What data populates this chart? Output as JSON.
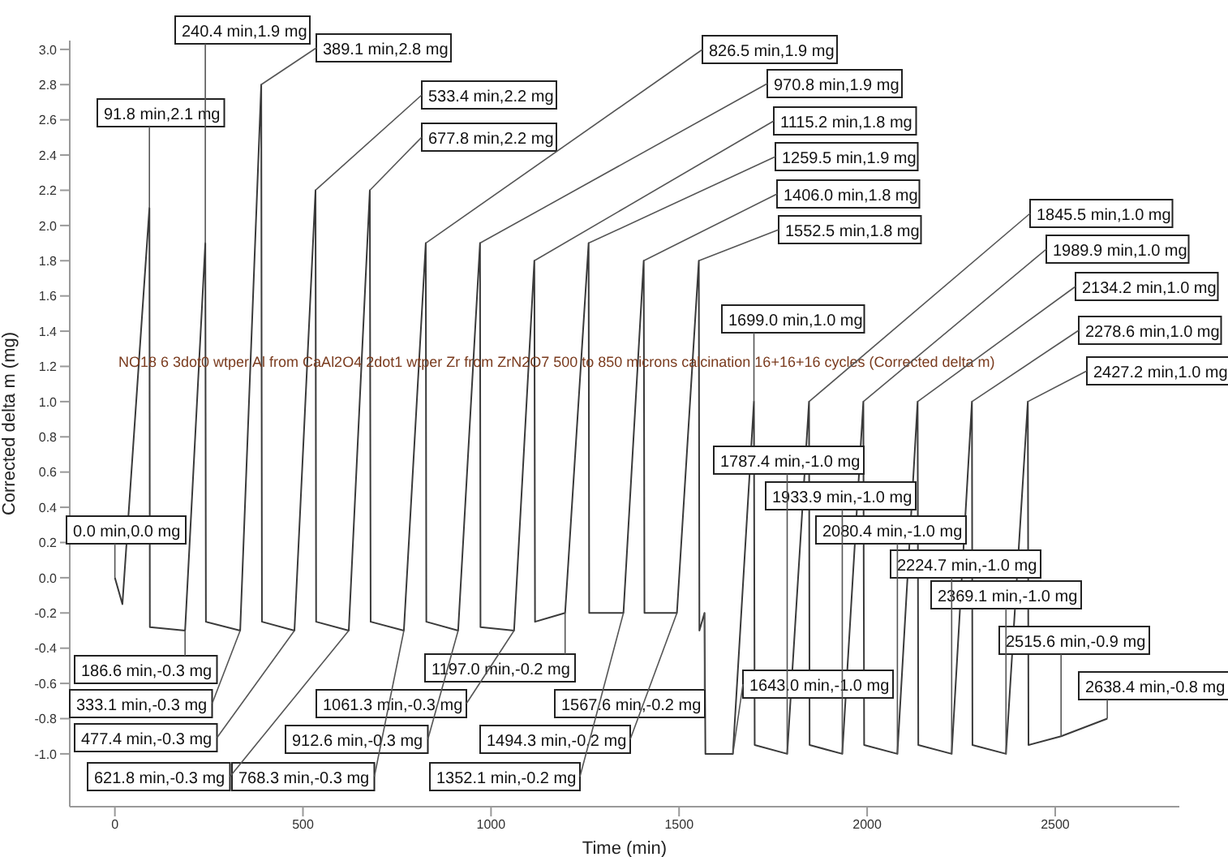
{
  "chart_data": {
    "type": "line",
    "xlabel": "Time (min)",
    "ylabel": "Corrected delta m (mg)",
    "xlim": [
      -120,
      2830
    ],
    "xticks": [
      0,
      500,
      1000,
      1500,
      2000,
      2500
    ],
    "ylim": [
      -1.3,
      3.05
    ],
    "yticks": [
      {
        "value": -1,
        "label": "-1.0"
      },
      -0.8,
      -0.6,
      -0.4,
      -0.2,
      {
        "value": 0,
        "label": "0.0"
      },
      0.2,
      0.4,
      0.6,
      0.8,
      {
        "value": 1,
        "label": "1.0"
      },
      1.2,
      1.4,
      1.6,
      1.8,
      {
        "value": 2,
        "label": "2.0"
      },
      2.2,
      2.4,
      2.6,
      2.8,
      {
        "value": 3,
        "label": "3.0"
      }
    ],
    "grid": false,
    "legend": false,
    "marker": "none",
    "line_style": "solid",
    "series": [
      {
        "name": "NO18 6 3dot0 wtper Al from CaAl2O4 2dot1 wtper Zr from ZrN2O7 500 to 850 microns calcination 16+16+16 cycles (Corrected delta m)",
        "color": "#3a3a3a",
        "x": [
          0,
          20,
          91.8,
          93,
          186.6,
          240.4,
          242,
          333.1,
          389.1,
          391,
          477.4,
          533.4,
          535,
          621.8,
          677.8,
          680,
          768.3,
          826.5,
          828,
          912.6,
          970.8,
          972,
          1061.3,
          1115.2,
          1117,
          1197.0,
          1259.5,
          1261,
          1352.1,
          1406.0,
          1408,
          1494.3,
          1552.5,
          1554,
          1567.6,
          1570,
          1643.0,
          1699.0,
          1701,
          1787.4,
          1845.5,
          1847,
          1933.9,
          1989.9,
          1992,
          2080.4,
          2134.2,
          2136,
          2224.7,
          2278.6,
          2280,
          2369.1,
          2427.2,
          2429,
          2515.6,
          2638.4
        ],
        "values": [
          0,
          -0.15,
          2.1,
          -0.28,
          -0.3,
          1.9,
          -0.25,
          -0.3,
          2.8,
          -0.25,
          -0.3,
          2.2,
          -0.25,
          -0.3,
          2.2,
          -0.25,
          -0.3,
          1.9,
          -0.25,
          -0.3,
          1.9,
          -0.28,
          -0.3,
          1.8,
          -0.25,
          -0.2,
          1.9,
          -0.2,
          -0.2,
          1.8,
          -0.2,
          -0.2,
          1.8,
          -0.3,
          -0.2,
          -1.0,
          -1.0,
          1.0,
          -0.95,
          -1.0,
          1.0,
          -0.95,
          -1.0,
          1.0,
          -0.95,
          -1.0,
          1.0,
          -0.95,
          -1.0,
          1.0,
          -0.95,
          -1.0,
          1.0,
          -0.95,
          -0.9,
          -0.8
        ]
      }
    ],
    "annotations": [
      {
        "text": "0.0 min,0.0 mg",
        "x": 0,
        "y": 0
      },
      {
        "text": "91.8 min,2.1 mg",
        "x": 91.8,
        "y": 2.1
      },
      {
        "text": "186.6 min,-0.3 mg",
        "x": 186.6,
        "y": -0.3
      },
      {
        "text": "240.4 min,1.9 mg",
        "x": 240.4,
        "y": 1.9
      },
      {
        "text": "333.1 min,-0.3 mg",
        "x": 333.1,
        "y": -0.3
      },
      {
        "text": "389.1 min,2.8 mg",
        "x": 389.1,
        "y": 2.8
      },
      {
        "text": "477.4 min,-0.3 mg",
        "x": 477.4,
        "y": -0.3
      },
      {
        "text": "533.4 min,2.2 mg",
        "x": 533.4,
        "y": 2.2
      },
      {
        "text": "621.8 min,-0.3 mg",
        "x": 621.8,
        "y": -0.3
      },
      {
        "text": "677.8 min,2.2 mg",
        "x": 677.8,
        "y": 2.2
      },
      {
        "text": "768.3 min,-0.3 mg",
        "x": 768.3,
        "y": -0.3
      },
      {
        "text": "826.5 min,1.9 mg",
        "x": 826.5,
        "y": 1.9
      },
      {
        "text": "912.6 min,-0.3 mg",
        "x": 912.6,
        "y": -0.3
      },
      {
        "text": "970.8 min,1.9 mg",
        "x": 970.8,
        "y": 1.9
      },
      {
        "text": "1061.3 min,-0.3 mg",
        "x": 1061.3,
        "y": -0.3
      },
      {
        "text": "1115.2 min,1.8 mg",
        "x": 1115.2,
        "y": 1.8
      },
      {
        "text": "1197.0 min,-0.2 mg",
        "x": 1197.0,
        "y": -0.2
      },
      {
        "text": "1259.5 min,1.9 mg",
        "x": 1259.5,
        "y": 1.9
      },
      {
        "text": "1352.1 min,-0.2 mg",
        "x": 1352.1,
        "y": -0.2
      },
      {
        "text": "1406.0 min,1.8 mg",
        "x": 1406.0,
        "y": 1.8
      },
      {
        "text": "1494.3 min,-0.2 mg",
        "x": 1494.3,
        "y": -0.2
      },
      {
        "text": "1552.5 min,1.8 mg",
        "x": 1552.5,
        "y": 1.8
      },
      {
        "text": "1567.6 min,-0.2 mg",
        "x": 1567.6,
        "y": -0.2
      },
      {
        "text": "1643.0 min,-1.0 mg",
        "x": 1643.0,
        "y": -1.0
      },
      {
        "text": "1699.0 min,1.0 mg",
        "x": 1699.0,
        "y": 1.0
      },
      {
        "text": "1787.4 min,-1.0 mg",
        "x": 1787.4,
        "y": -1.0
      },
      {
        "text": "1845.5 min,1.0 mg",
        "x": 1845.5,
        "y": 1.0
      },
      {
        "text": "1933.9 min,-1.0 mg",
        "x": 1933.9,
        "y": -1.0
      },
      {
        "text": "1989.9 min,1.0 mg",
        "x": 1989.9,
        "y": 1.0
      },
      {
        "text": "2080.4 min,-1.0 mg",
        "x": 2080.4,
        "y": -1.0
      },
      {
        "text": "2134.2 min,1.0 mg",
        "x": 2134.2,
        "y": 1.0
      },
      {
        "text": "2224.7 min,-1.0 mg",
        "x": 2224.7,
        "y": -1.0
      },
      {
        "text": "2278.6 min,1.0 mg",
        "x": 2278.6,
        "y": 1.0
      },
      {
        "text": "2369.1 min,-1.0 mg",
        "x": 2369.1,
        "y": -1.0
      },
      {
        "text": "2427.2 min,1.0 mg",
        "x": 2427.2,
        "y": 1.0
      },
      {
        "text": "2515.6 min,-0.9 mg",
        "x": 2515.6,
        "y": -0.9
      },
      {
        "text": "2638.4 min,-0.8 mg",
        "x": 2638.4,
        "y": -0.8
      }
    ]
  }
}
